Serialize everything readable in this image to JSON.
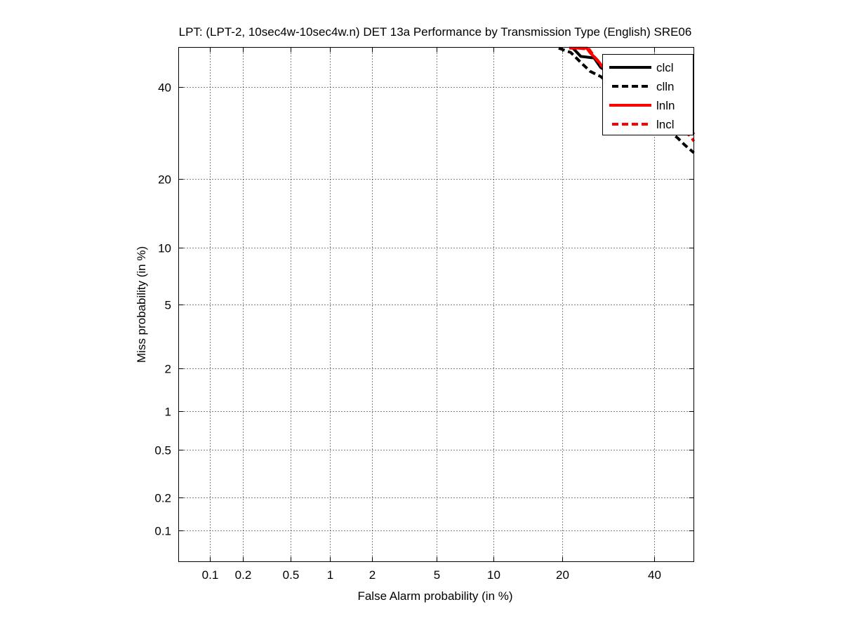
{
  "chart_data": {
    "type": "line",
    "title": "LPT: (LPT-2, 10sec4w-10sec4w.n) DET 13a Performance by Transmission Type (English) SRE06",
    "xlabel": "False Alarm probability (in %)",
    "ylabel": "Miss probability (in %)",
    "xscale": "probit",
    "yscale": "probit",
    "xlim": [
      0.05,
      50
    ],
    "ylim": [
      0.05,
      50
    ],
    "xticks": [
      0.1,
      0.2,
      0.5,
      1,
      2,
      5,
      10,
      20,
      40
    ],
    "xtick_labels": [
      "0.1",
      "0.2",
      "0.5",
      "1",
      "2",
      "5",
      "10",
      "20",
      "40"
    ],
    "yticks": [
      0.1,
      0.2,
      0.5,
      1,
      2,
      5,
      10,
      20,
      40
    ],
    "ytick_labels": [
      "0.1",
      "0.2",
      "0.5",
      "1",
      "2",
      "5",
      "10",
      "20",
      "40"
    ],
    "grid": true,
    "legend_position": "top-right",
    "series": [
      {
        "name": "clcl",
        "color": "#000000",
        "dash": "solid",
        "x": [
          22.0,
          23.5,
          26.2,
          27.6,
          29.9,
          39.8,
          50
        ],
        "y": [
          49.8,
          47.7,
          47.3,
          44.9,
          43.2,
          32.9,
          32.9
        ]
      },
      {
        "name": "clln",
        "color": "#000000",
        "dash": "dashed",
        "x": [
          19.4,
          21.6,
          23.5,
          25.4,
          27.6,
          45.9,
          47.7,
          50
        ],
        "y": [
          49.8,
          48.7,
          46.2,
          43.9,
          42.6,
          28.1,
          26.6,
          25.0
        ]
      },
      {
        "name": "lnln",
        "color": "#ff0000",
        "dash": "solid",
        "x": [
          21.3,
          24.7,
          25.4,
          26.9,
          28.1,
          47.7,
          49.5,
          50
        ],
        "y": [
          49.8,
          49.8,
          48.6,
          46.8,
          44.9,
          32.1,
          29.7,
          28.9
        ]
      },
      {
        "name": "lncl",
        "color": "#ff0000",
        "dash": "dashed",
        "x": [
          23.1,
          25.2,
          26.2,
          27.6,
          46.8,
          49.5,
          50
        ],
        "y": [
          49.8,
          49.5,
          47.7,
          45.5,
          30.5,
          28.1,
          27.4
        ]
      }
    ]
  }
}
